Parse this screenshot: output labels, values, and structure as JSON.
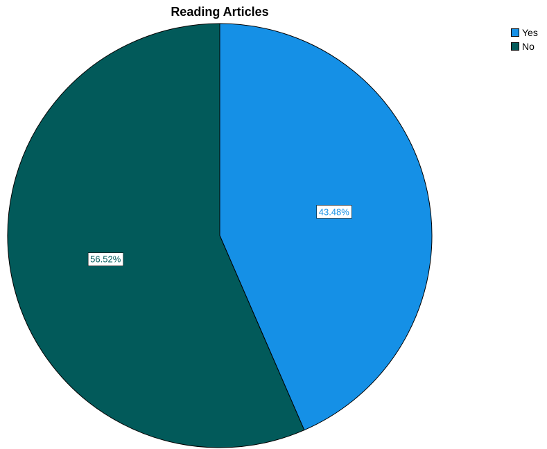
{
  "chart_data": {
    "type": "pie",
    "title": "Reading Articles",
    "legend_position": "top-right",
    "slices": [
      {
        "label": "Yes",
        "value": 43.48,
        "display": "43.48%",
        "color": "#1590e6"
      },
      {
        "label": "No",
        "value": 56.52,
        "display": "56.52%",
        "color": "#025a5a"
      }
    ]
  }
}
